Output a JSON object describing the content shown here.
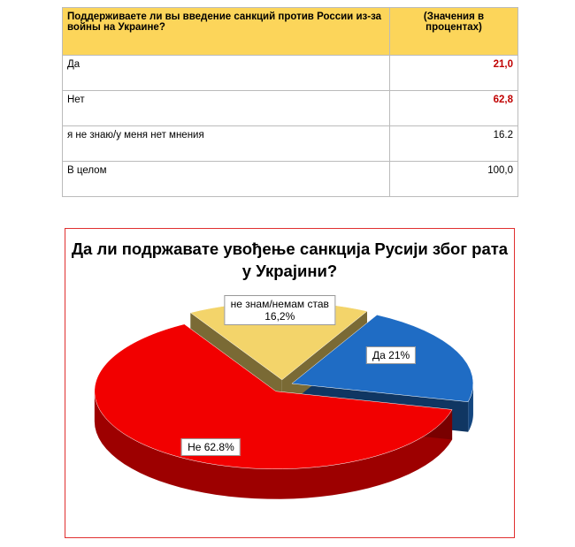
{
  "table": {
    "header": [
      "Поддерживаете ли вы введение санкций против России  из-за войны на Украине?",
      "(Значения в процентах)"
    ],
    "rows": [
      [
        "Да",
        "21,0"
      ],
      [
        "Нет",
        "62,8"
      ],
      [
        "я не знаю/у меня нет мнения",
        "16.2"
      ],
      [
        "В целом",
        "100,0"
      ]
    ]
  },
  "chart_data": {
    "type": "pie",
    "title": "Да ли подржавате увођење санкција Русији због рата у Украјини?",
    "values": [
      21,
      62.8,
      16.2
    ],
    "value_labels": [
      "Да 21%",
      "Не 62.8%",
      "не знам/немам став\n16,2%"
    ],
    "colors": [
      "#1f6cc4",
      "#f20000",
      "#f3d46a"
    ]
  }
}
